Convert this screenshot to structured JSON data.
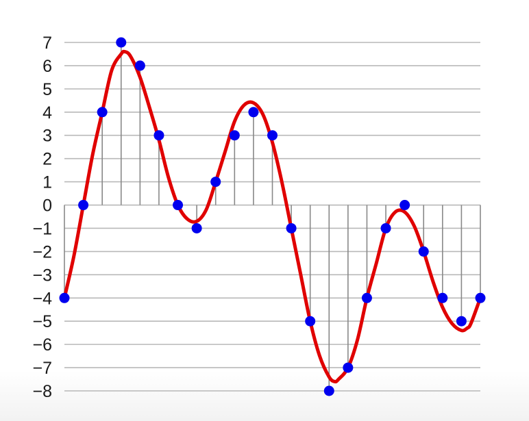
{
  "chart_data": {
    "type": "scatter",
    "title": "",
    "xlabel": "",
    "ylabel": "",
    "x": [
      0,
      1,
      2,
      3,
      4,
      5,
      6,
      7,
      8,
      9,
      10,
      11,
      12,
      13,
      14,
      15,
      16,
      17,
      18,
      19,
      20,
      21,
      22
    ],
    "samples": [
      -4,
      0,
      4,
      7,
      6,
      3,
      0,
      -1,
      1,
      3,
      4,
      3,
      -1,
      -5,
      -8,
      -7,
      -4,
      -1,
      0,
      -2,
      -4,
      -5,
      -4
    ],
    "curve": {
      "name": "",
      "color": "#e00000",
      "x": [
        0,
        0.5,
        1,
        1.5,
        2,
        2.5,
        3,
        3.2,
        3.5,
        4,
        4.5,
        5,
        5.5,
        6,
        6.5,
        7,
        7.5,
        8,
        8.5,
        9,
        9.5,
        10,
        10.5,
        11,
        11.5,
        12,
        12.5,
        13,
        13.5,
        14,
        14.3,
        14.5,
        15,
        15.5,
        16,
        16.5,
        17,
        17.5,
        18,
        18.5,
        19,
        19.5,
        20,
        20.5,
        21,
        21.3,
        21.5,
        22
      ],
      "y": [
        -4,
        -2.2,
        0,
        2.2,
        4,
        5.8,
        6.5,
        6.6,
        6.4,
        5.5,
        4.2,
        2.8,
        1.2,
        0,
        -0.6,
        -0.7,
        -0.2,
        1.0,
        2.3,
        3.6,
        4.3,
        4.4,
        3.9,
        2.7,
        1.0,
        -1.0,
        -3.0,
        -5.0,
        -6.5,
        -7.4,
        -7.6,
        -7.5,
        -7.0,
        -5.8,
        -4.0,
        -2.5,
        -1.0,
        -0.3,
        -0.3,
        -0.9,
        -2.0,
        -3.3,
        -4.4,
        -5.1,
        -5.4,
        -5.3,
        -5.1,
        -4.0
      ]
    },
    "series": [
      {
        "name": "",
        "color": "#0000ee",
        "values": [
          -4,
          0,
          4,
          7,
          6,
          3,
          0,
          -1,
          1,
          3,
          4,
          3,
          -1,
          -5,
          -8,
          -7,
          -4,
          -1,
          0,
          -2,
          -4,
          -5,
          -4
        ]
      }
    ],
    "yticks": [
      "7",
      "6",
      "5",
      "4",
      "3",
      "2",
      "1",
      "0",
      "−1",
      "−2",
      "−3",
      "−4",
      "−5",
      "−6",
      "−7",
      "−8"
    ],
    "ylim": [
      -8,
      7
    ],
    "xlim": [
      0,
      22
    ],
    "grid": true,
    "stems": true,
    "stem_color": "#888888",
    "grid_color": "#b8b8b8",
    "point_color": "#0000ee"
  }
}
